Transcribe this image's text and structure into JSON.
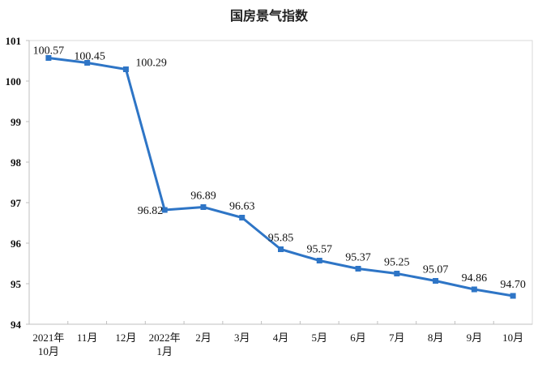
{
  "chart_data": {
    "type": "line",
    "title": "国房景气指数",
    "categories": [
      [
        "2021年",
        "10月"
      ],
      [
        "11月"
      ],
      [
        "12月"
      ],
      [
        "2022年",
        "1月"
      ],
      [
        "2月"
      ],
      [
        "3月"
      ],
      [
        "4月"
      ],
      [
        "5月"
      ],
      [
        "6月"
      ],
      [
        "7月"
      ],
      [
        "8月"
      ],
      [
        "9月"
      ],
      [
        "10月"
      ]
    ],
    "values": [
      100.57,
      100.45,
      100.29,
      96.82,
      96.89,
      96.63,
      95.85,
      95.57,
      95.37,
      95.25,
      95.07,
      94.86,
      94.7
    ],
    "data_labels": [
      "100.57",
      "100.45",
      "100.29",
      "96.82",
      "96.89",
      "96.63",
      "95.85",
      "95.57",
      "95.37",
      "95.25",
      "95.07",
      "94.86",
      "94.70"
    ],
    "ylim": [
      94,
      101
    ],
    "yticks": [
      "94",
      "95",
      "96",
      "97",
      "98",
      "99",
      "100",
      "101"
    ],
    "grid": false,
    "line_color": "#2e75c6",
    "xlabel": "",
    "ylabel": ""
  }
}
